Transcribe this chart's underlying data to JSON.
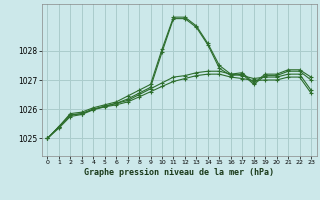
{
  "title": "Graphe pression niveau de la mer (hPa)",
  "bg_color": "#cce8ea",
  "grid_color": "#aacccc",
  "line_color": "#2d6e2d",
  "xlim": [
    -0.5,
    23.5
  ],
  "ylim": [
    1024.4,
    1029.6
  ],
  "yticks": [
    1025,
    1026,
    1027,
    1028
  ],
  "xticks": [
    0,
    1,
    2,
    3,
    4,
    5,
    6,
    7,
    8,
    9,
    10,
    11,
    12,
    13,
    14,
    15,
    16,
    17,
    18,
    19,
    20,
    21,
    22,
    23
  ],
  "series1": [
    1025.0,
    1025.4,
    1025.85,
    1025.9,
    1026.05,
    1026.15,
    1026.25,
    1026.45,
    1026.65,
    1026.85,
    1028.05,
    1029.15,
    1029.15,
    1028.85,
    1028.25,
    1027.5,
    1027.2,
    1027.25,
    1026.9,
    1027.2,
    1027.2,
    1027.35,
    1027.35,
    1027.1
  ],
  "series2": [
    1025.0,
    1025.4,
    1025.8,
    1025.85,
    1026.0,
    1026.1,
    1026.2,
    1026.35,
    1026.55,
    1026.75,
    1027.95,
    1029.1,
    1029.1,
    1028.8,
    1028.2,
    1027.4,
    1027.15,
    1027.2,
    1026.85,
    1027.15,
    1027.15,
    1027.3,
    1027.3,
    1027.0
  ],
  "series3": [
    1025.0,
    1025.4,
    1025.8,
    1025.85,
    1026.0,
    1026.1,
    1026.2,
    1026.3,
    1026.5,
    1026.7,
    1026.9,
    1027.1,
    1027.15,
    1027.25,
    1027.3,
    1027.3,
    1027.2,
    1027.15,
    1027.05,
    1027.1,
    1027.1,
    1027.2,
    1027.2,
    1026.65
  ],
  "series4": [
    1025.0,
    1025.35,
    1025.75,
    1025.82,
    1025.98,
    1026.08,
    1026.15,
    1026.25,
    1026.42,
    1026.6,
    1026.78,
    1026.95,
    1027.05,
    1027.15,
    1027.2,
    1027.2,
    1027.1,
    1027.05,
    1026.98,
    1027.0,
    1027.0,
    1027.1,
    1027.1,
    1026.55
  ]
}
